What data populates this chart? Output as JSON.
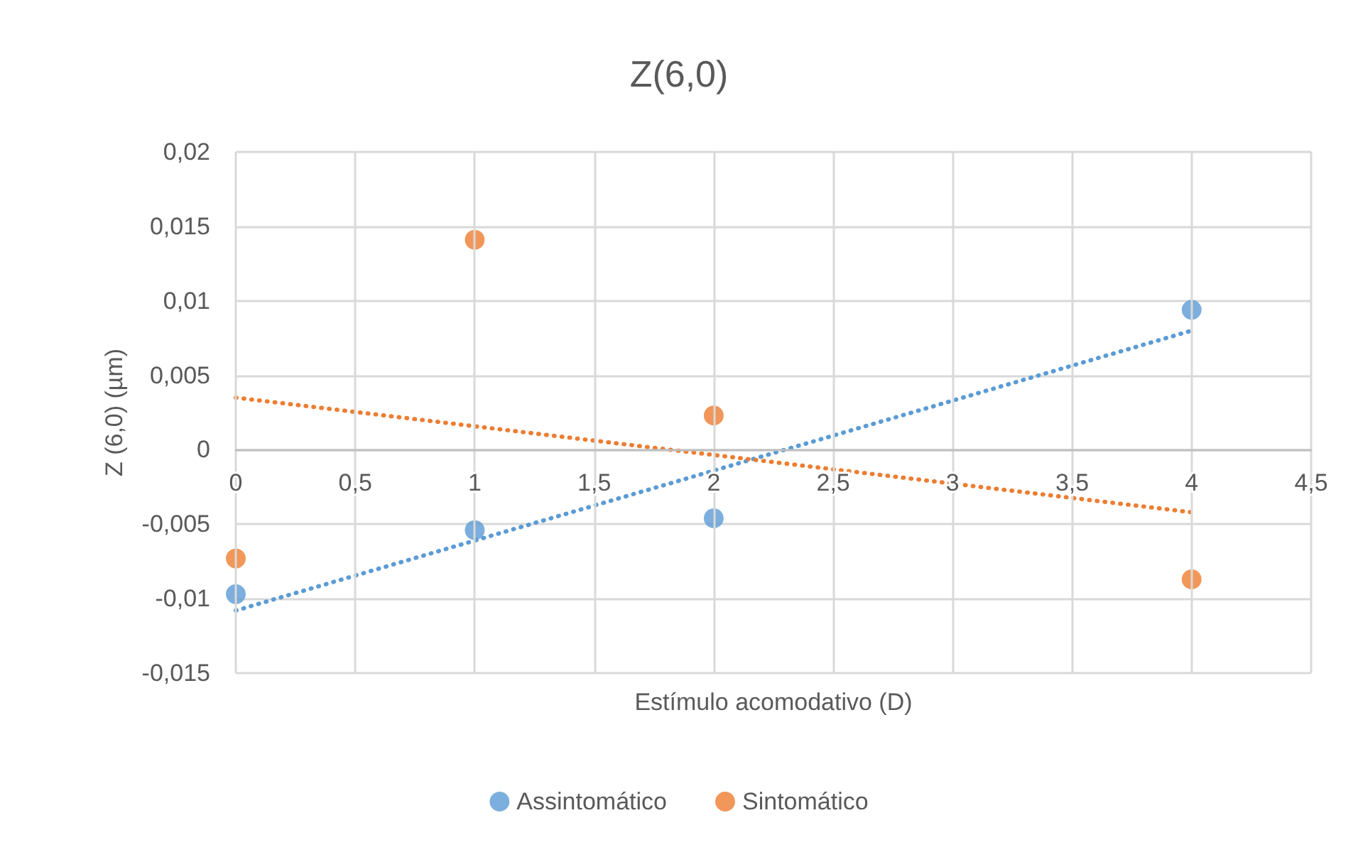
{
  "chart_data": {
    "type": "scatter",
    "title": "Z(6,0)",
    "xlabel": "Estímulo acomodativo (D)",
    "ylabel": "Z (6,0) (µm)",
    "series": [
      {
        "name": "Assintomático",
        "color": "#5b9bd5",
        "x": [
          0,
          1,
          2,
          4
        ],
        "values": [
          -0.0097,
          -0.0054,
          -0.0046,
          0.0094
        ]
      },
      {
        "name": "Sintomático",
        "color": "#ed7d31",
        "x": [
          0,
          1,
          2,
          4
        ],
        "values": [
          -0.0073,
          0.0141,
          0.0023,
          -0.0087
        ]
      },
      {
        "type": "line",
        "color": "#5b9bd5",
        "x": [
          0,
          4
        ],
        "values": [
          -0.0108,
          0.008
        ],
        "line_style": "dotted",
        "marker": "none"
      },
      {
        "type": "line",
        "color": "#ed7d31",
        "x": [
          0,
          4
        ],
        "values": [
          0.0035,
          -0.0042
        ],
        "line_style": "dotted",
        "marker": "none"
      }
    ],
    "xlim": [
      0,
      4.5
    ],
    "xticks": [
      0,
      {
        "value": 0.5,
        "label": "0,5"
      },
      1,
      {
        "value": 1.5,
        "label": "1,5"
      },
      2,
      {
        "value": 2.5,
        "label": "2,5"
      },
      3,
      {
        "value": 3.5,
        "label": "3,5"
      },
      4,
      {
        "value": 4.5,
        "label": "4,5"
      }
    ],
    "ylim": [
      -0.015,
      0.02
    ],
    "yticks": [
      {
        "value": -0.015,
        "label": "-0,015"
      },
      {
        "value": -0.01,
        "label": "-0,01"
      },
      {
        "value": -0.005,
        "label": "-0,005"
      },
      0,
      {
        "value": 0.005,
        "label": "0,005"
      },
      {
        "value": 0.01,
        "label": "0,01"
      },
      {
        "value": 0.015,
        "label": "0,015"
      },
      {
        "value": 0.02,
        "label": "0,02"
      }
    ],
    "grid": true,
    "legend": "bottom",
    "marker": "circle"
  }
}
